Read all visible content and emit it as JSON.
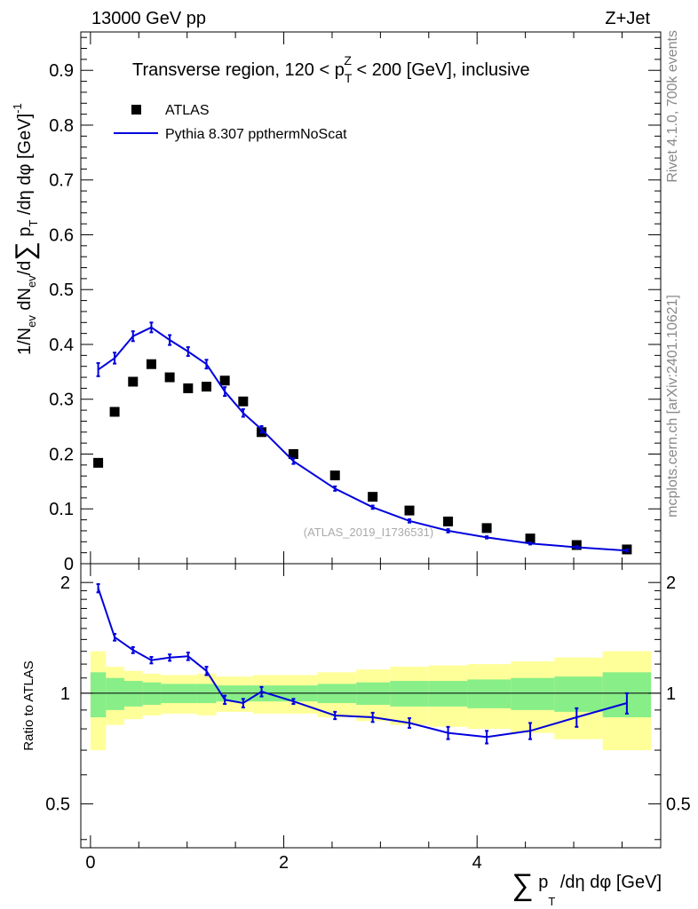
{
  "header": {
    "left": "13000 GeV pp",
    "right": "Z+Jet"
  },
  "side_labels": {
    "rivet": "Rivet 4.1.0,  700k events",
    "mcplots": "mcplots.cern.ch [arXiv:2401.10621]"
  },
  "chart_data": {
    "type": "scatter",
    "title": "Transverse region, 120 < p_T^Z < 200 [GeV], inclusive",
    "watermark": "(ATLAS_2019_I1736531)",
    "xlabel": "∑ p_T /dη dφ [GeV]",
    "ylabel": "1/N_ev dN_ev/d∑ p_T /dη dφ  [GeV]^-1",
    "ratio_ylabel": "Ratio to ATLAS",
    "xlim": [
      -0.1,
      5.9
    ],
    "ylim": [
      0,
      0.97
    ],
    "ratio_ylim": [
      0.38,
      2.25
    ],
    "x_ticks": [
      0,
      2,
      4
    ],
    "y_ticks": [
      0,
      0.1,
      0.2,
      0.3,
      0.4,
      0.5,
      0.6,
      0.7,
      0.8,
      0.9
    ],
    "y_tick_labels": [
      "0",
      "0.1",
      "0.2",
      "0.3",
      "0.4",
      "0.5",
      "0.6",
      "0.7",
      "0.8",
      "0.9"
    ],
    "ratio_ticks": [
      0.5,
      1,
      2
    ],
    "ratio_tick_labels": [
      "0.5",
      "1",
      "2"
    ],
    "legend": [
      {
        "label": "ATLAS",
        "marker": "square",
        "color": "#000000"
      },
      {
        "label": "Pythia 8.307 ppthermNoScat",
        "marker": "line",
        "color": "#0000dd"
      }
    ],
    "data": {
      "name": "ATLAS",
      "x": [
        0.08,
        0.25,
        0.44,
        0.63,
        0.82,
        1.01,
        1.2,
        1.39,
        1.58,
        1.77,
        2.1,
        2.53,
        2.92,
        3.3,
        3.7,
        4.1,
        4.55,
        5.03,
        5.55
      ],
      "y": [
        0.184,
        0.277,
        0.332,
        0.364,
        0.34,
        0.32,
        0.323,
        0.334,
        0.296,
        0.24,
        0.2,
        0.161,
        0.122,
        0.097,
        0.077,
        0.065,
        0.046,
        0.034,
        0.026
      ]
    },
    "mc": {
      "name": "Pythia 8.307 ppthermNoScat",
      "color": "#0000dd",
      "x": [
        0.08,
        0.25,
        0.44,
        0.63,
        0.82,
        1.01,
        1.2,
        1.39,
        1.58,
        1.77,
        2.1,
        2.53,
        2.92,
        3.3,
        3.7,
        4.1,
        4.55,
        5.03,
        5.55
      ],
      "y": [
        0.354,
        0.375,
        0.415,
        0.431,
        0.408,
        0.387,
        0.364,
        0.314,
        0.275,
        0.245,
        0.187,
        0.137,
        0.103,
        0.078,
        0.06,
        0.048,
        0.037,
        0.03,
        0.024
      ],
      "yerr": [
        0.012,
        0.01,
        0.009,
        0.009,
        0.009,
        0.008,
        0.008,
        0.008,
        0.007,
        0.006,
        0.005,
        0.004,
        0.003,
        0.003,
        0.003,
        0.002,
        0.002,
        0.002,
        0.002
      ],
      "ratio": [
        1.93,
        1.42,
        1.31,
        1.23,
        1.25,
        1.26,
        1.15,
        0.96,
        0.94,
        1.01,
        0.95,
        0.87,
        0.86,
        0.83,
        0.78,
        0.76,
        0.79,
        0.86,
        0.94
      ],
      "ratio_err": [
        0.05,
        0.03,
        0.025,
        0.025,
        0.025,
        0.03,
        0.03,
        0.025,
        0.025,
        0.03,
        0.015,
        0.02,
        0.025,
        0.025,
        0.03,
        0.03,
        0.04,
        0.05,
        0.06
      ]
    },
    "bands": {
      "bin_edges": [
        0.0,
        0.16,
        0.35,
        0.54,
        0.73,
        0.92,
        1.1,
        1.3,
        1.49,
        1.68,
        1.87,
        2.35,
        2.75,
        3.1,
        3.5,
        3.9,
        4.35,
        4.8,
        5.3,
        5.8
      ],
      "inner": [
        0.14,
        0.1,
        0.08,
        0.07,
        0.06,
        0.06,
        0.06,
        0.05,
        0.05,
        0.05,
        0.05,
        0.06,
        0.07,
        0.08,
        0.08,
        0.09,
        0.1,
        0.11,
        0.14
      ],
      "outer": [
        0.3,
        0.18,
        0.15,
        0.13,
        0.12,
        0.12,
        0.13,
        0.11,
        0.11,
        0.12,
        0.12,
        0.14,
        0.16,
        0.18,
        0.19,
        0.2,
        0.22,
        0.25,
        0.3
      ],
      "inner_color": "#88ee88",
      "outer_color": "#ffff99"
    }
  }
}
